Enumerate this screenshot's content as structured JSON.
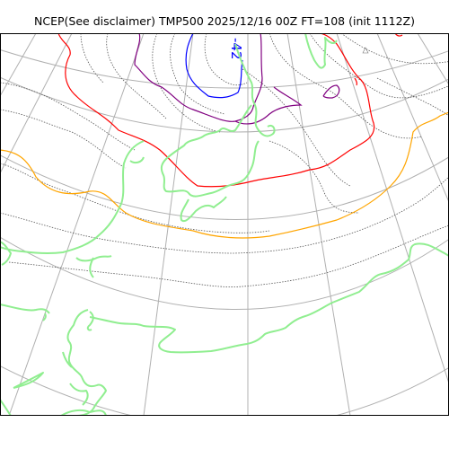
{
  "title": "NCEP(See disclaimer) TMP500 2025/12/16 00Z FT=108 (init 1112Z)",
  "map": {
    "contour_label": "-42",
    "colors": {
      "graticule": "#b0b0b0",
      "coastline": "#90ee90",
      "isotherm_dotted": "#555555",
      "isotherm_orange": "#ffa500",
      "isotherm_red": "#ff0000",
      "isotherm_purple": "#800080",
      "isotherm_blue": "#0000ff",
      "frame": "#000000"
    }
  }
}
